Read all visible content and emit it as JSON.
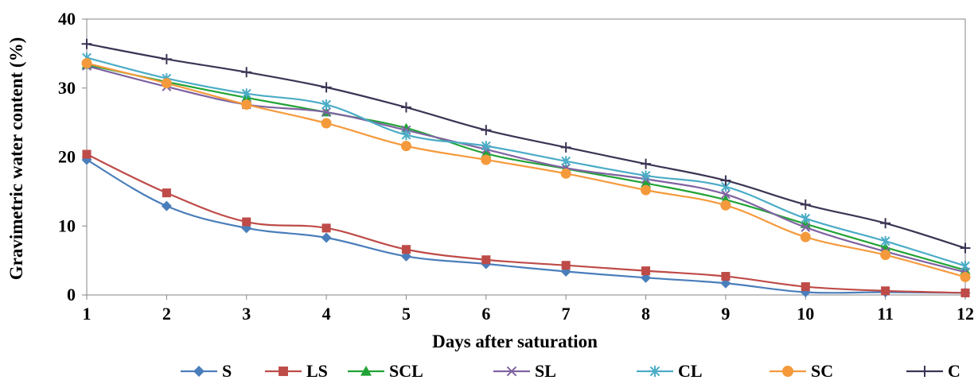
{
  "chart_data": {
    "type": "line",
    "title": "",
    "xlabel": "Days after saturation",
    "ylabel": "Gravimetric water content (%)",
    "x": [
      1,
      2,
      3,
      4,
      5,
      6,
      7,
      8,
      9,
      10,
      11,
      12
    ],
    "x_tick_labels": [
      "1",
      "2",
      "3",
      "4",
      "5",
      "6",
      "7",
      "8",
      "9",
      "10",
      "11",
      "12"
    ],
    "ylim": [
      0,
      40
    ],
    "y_ticks": [
      0,
      10,
      20,
      30,
      40
    ],
    "y_tick_labels": [
      "0",
      "10",
      "20",
      "30",
      "40"
    ],
    "grid": false,
    "legend_position": "bottom",
    "series": [
      {
        "name": "S",
        "color": "#4a7ebb",
        "marker": "diamond",
        "values": [
          19.6,
          12.9,
          9.7,
          8.3,
          5.6,
          4.5,
          3.4,
          2.5,
          1.7,
          0.4,
          0.4,
          0.3
        ]
      },
      {
        "name": "LS",
        "color": "#be4b48",
        "marker": "square",
        "values": [
          20.4,
          14.8,
          10.6,
          9.7,
          6.6,
          5.1,
          4.3,
          3.5,
          2.7,
          1.2,
          0.6,
          0.3
        ]
      },
      {
        "name": "SCL",
        "color": "#22a336",
        "marker": "triangle",
        "values": [
          33.4,
          30.9,
          28.6,
          26.5,
          24.2,
          20.5,
          18.3,
          16.2,
          13.8,
          10.3,
          6.9,
          3.6
        ]
      },
      {
        "name": "SL",
        "color": "#7f63a1",
        "marker": "x",
        "values": [
          33.2,
          30.2,
          27.6,
          26.5,
          23.9,
          21.1,
          18.4,
          16.8,
          14.6,
          9.8,
          6.3,
          3.3
        ]
      },
      {
        "name": "CL",
        "color": "#4bacc6",
        "marker": "star",
        "values": [
          34.4,
          31.4,
          29.2,
          27.6,
          23.2,
          21.6,
          19.4,
          17.3,
          15.7,
          11.1,
          7.8,
          4.2
        ]
      },
      {
        "name": "SC",
        "color": "#f59a3c",
        "marker": "circle",
        "values": [
          33.6,
          30.7,
          27.6,
          24.9,
          21.6,
          19.6,
          17.6,
          15.2,
          13.0,
          8.4,
          5.8,
          2.6
        ]
      },
      {
        "name": "C",
        "color": "#3c3454",
        "marker": "plus",
        "values": [
          36.4,
          34.2,
          32.3,
          30.1,
          27.2,
          23.9,
          21.4,
          19.0,
          16.6,
          13.1,
          10.4,
          6.8
        ]
      }
    ]
  }
}
